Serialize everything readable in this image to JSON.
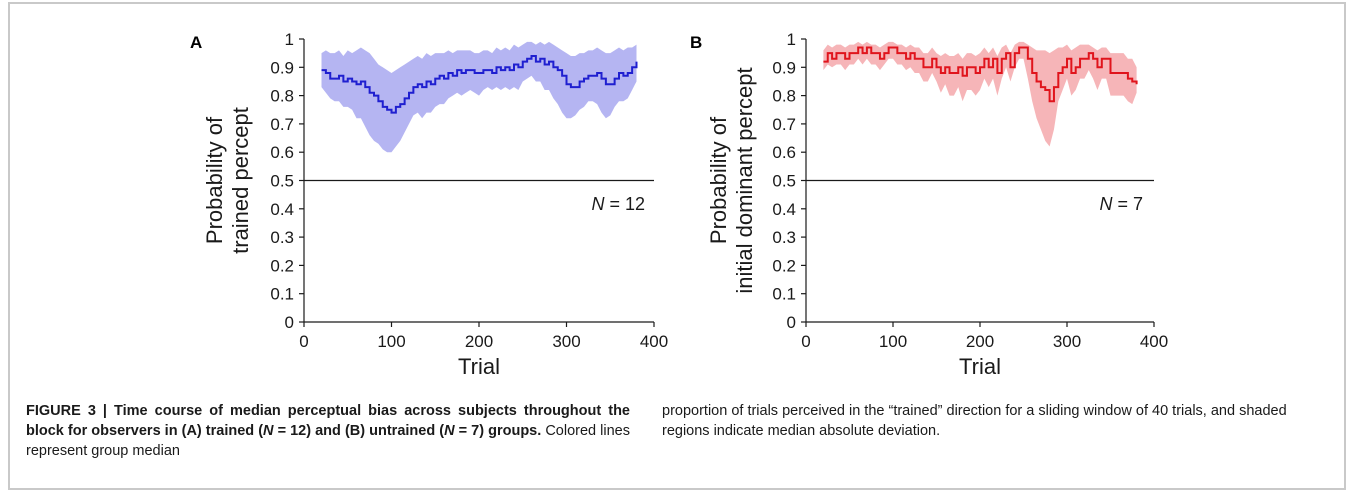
{
  "chart_data": [
    {
      "type": "line",
      "panel_label": "A",
      "ylabel_lines": [
        "Probability of",
        "trained percept"
      ],
      "xlabel": "Trial",
      "xlim": [
        0,
        400
      ],
      "ylim": [
        0,
        1
      ],
      "xticks": [
        "0",
        "100",
        "200",
        "300",
        "400"
      ],
      "yticks": [
        "0",
        "0.1",
        "0.2",
        "0.3",
        "0.4",
        "0.5",
        "0.6",
        "0.7",
        "0.8",
        "0.9",
        "1"
      ],
      "reference_line_y": 0.5,
      "annotation_prefix": "N",
      "annotation_suffix": " = 12",
      "line_color": "#1f1fd0",
      "band_color": "#a8a8f0",
      "series": [
        {
          "x": [
            20,
            25,
            30,
            35,
            40,
            45,
            50,
            55,
            60,
            65,
            70,
            75,
            80,
            85,
            90,
            95,
            100,
            105,
            110,
            115,
            120,
            125,
            130,
            135,
            140,
            145,
            150,
            155,
            160,
            165,
            170,
            175,
            180,
            185,
            190,
            195,
            200,
            205,
            210,
            215,
            220,
            225,
            230,
            235,
            240,
            245,
            250,
            255,
            260,
            265,
            270,
            275,
            280,
            285,
            290,
            295,
            300,
            305,
            310,
            315,
            320,
            325,
            330,
            335,
            340,
            345,
            350,
            355,
            360,
            365,
            370,
            375,
            380
          ],
          "median": [
            0.89,
            0.88,
            0.86,
            0.86,
            0.87,
            0.85,
            0.86,
            0.85,
            0.84,
            0.85,
            0.83,
            0.81,
            0.8,
            0.78,
            0.76,
            0.75,
            0.74,
            0.76,
            0.77,
            0.79,
            0.81,
            0.83,
            0.84,
            0.83,
            0.85,
            0.84,
            0.86,
            0.87,
            0.86,
            0.88,
            0.87,
            0.89,
            0.88,
            0.89,
            0.89,
            0.88,
            0.88,
            0.89,
            0.89,
            0.88,
            0.9,
            0.89,
            0.9,
            0.89,
            0.91,
            0.9,
            0.92,
            0.93,
            0.94,
            0.92,
            0.93,
            0.91,
            0.92,
            0.9,
            0.89,
            0.87,
            0.84,
            0.83,
            0.83,
            0.85,
            0.86,
            0.87,
            0.87,
            0.88,
            0.86,
            0.84,
            0.84,
            0.86,
            0.88,
            0.87,
            0.88,
            0.9,
            0.92
          ],
          "lower": [
            0.83,
            0.81,
            0.79,
            0.78,
            0.78,
            0.76,
            0.76,
            0.75,
            0.72,
            0.72,
            0.69,
            0.66,
            0.64,
            0.63,
            0.61,
            0.6,
            0.6,
            0.62,
            0.64,
            0.67,
            0.7,
            0.73,
            0.74,
            0.72,
            0.74,
            0.74,
            0.76,
            0.77,
            0.77,
            0.79,
            0.8,
            0.81,
            0.8,
            0.81,
            0.82,
            0.81,
            0.8,
            0.82,
            0.83,
            0.82,
            0.83,
            0.82,
            0.83,
            0.82,
            0.83,
            0.82,
            0.85,
            0.86,
            0.87,
            0.85,
            0.85,
            0.82,
            0.82,
            0.79,
            0.77,
            0.74,
            0.72,
            0.72,
            0.73,
            0.75,
            0.76,
            0.78,
            0.78,
            0.77,
            0.74,
            0.72,
            0.73,
            0.76,
            0.78,
            0.78,
            0.79,
            0.82,
            0.85
          ],
          "upper": [
            0.95,
            0.96,
            0.95,
            0.95,
            0.96,
            0.94,
            0.96,
            0.95,
            0.96,
            0.97,
            0.96,
            0.95,
            0.93,
            0.91,
            0.9,
            0.89,
            0.88,
            0.89,
            0.9,
            0.91,
            0.92,
            0.93,
            0.94,
            0.93,
            0.95,
            0.94,
            0.95,
            0.95,
            0.95,
            0.96,
            0.95,
            0.96,
            0.96,
            0.96,
            0.96,
            0.95,
            0.95,
            0.96,
            0.96,
            0.95,
            0.97,
            0.96,
            0.97,
            0.96,
            0.98,
            0.97,
            0.98,
            0.99,
            0.99,
            0.98,
            0.99,
            0.98,
            0.99,
            0.98,
            0.97,
            0.96,
            0.95,
            0.94,
            0.94,
            0.95,
            0.95,
            0.96,
            0.96,
            0.97,
            0.96,
            0.95,
            0.95,
            0.96,
            0.97,
            0.96,
            0.97,
            0.97,
            0.98
          ]
        }
      ]
    },
    {
      "type": "line",
      "panel_label": "B",
      "ylabel_lines": [
        "Probability of",
        "initial dominant percept"
      ],
      "xlabel": "Trial",
      "xlim": [
        0,
        400
      ],
      "ylim": [
        0,
        1
      ],
      "xticks": [
        "0",
        "100",
        "200",
        "300",
        "400"
      ],
      "yticks": [
        "0",
        "0.1",
        "0.2",
        "0.3",
        "0.4",
        "0.5",
        "0.6",
        "0.7",
        "0.8",
        "0.9",
        "1"
      ],
      "reference_line_y": 0.5,
      "annotation_prefix": "N",
      "annotation_suffix": " = 7",
      "line_color": "#e0141c",
      "band_color": "#f4a8ac",
      "series": [
        {
          "x": [
            20,
            25,
            30,
            35,
            40,
            45,
            50,
            55,
            60,
            65,
            70,
            75,
            80,
            85,
            90,
            95,
            100,
            105,
            110,
            115,
            120,
            125,
            130,
            135,
            140,
            145,
            150,
            155,
            160,
            165,
            170,
            175,
            180,
            185,
            190,
            195,
            200,
            205,
            210,
            215,
            220,
            225,
            230,
            235,
            240,
            245,
            250,
            255,
            260,
            265,
            270,
            275,
            280,
            285,
            290,
            295,
            300,
            305,
            310,
            315,
            320,
            325,
            330,
            335,
            340,
            345,
            350,
            355,
            360,
            365,
            370,
            375,
            380
          ],
          "median": [
            0.92,
            0.95,
            0.93,
            0.95,
            0.95,
            0.93,
            0.95,
            0.95,
            0.97,
            0.95,
            0.97,
            0.95,
            0.95,
            0.93,
            0.95,
            0.97,
            0.97,
            0.95,
            0.95,
            0.93,
            0.95,
            0.93,
            0.93,
            0.9,
            0.9,
            0.93,
            0.9,
            0.88,
            0.9,
            0.88,
            0.88,
            0.9,
            0.87,
            0.9,
            0.9,
            0.88,
            0.9,
            0.93,
            0.9,
            0.93,
            0.88,
            0.93,
            0.95,
            0.9,
            0.95,
            0.97,
            0.97,
            0.93,
            0.88,
            0.85,
            0.83,
            0.82,
            0.78,
            0.83,
            0.88,
            0.9,
            0.93,
            0.88,
            0.9,
            0.93,
            0.93,
            0.95,
            0.93,
            0.9,
            0.93,
            0.93,
            0.88,
            0.88,
            0.88,
            0.88,
            0.86,
            0.85,
            0.84
          ],
          "lower": [
            0.89,
            0.91,
            0.9,
            0.91,
            0.91,
            0.89,
            0.91,
            0.91,
            0.93,
            0.91,
            0.93,
            0.91,
            0.91,
            0.89,
            0.91,
            0.93,
            0.93,
            0.91,
            0.91,
            0.89,
            0.9,
            0.88,
            0.88,
            0.85,
            0.85,
            0.88,
            0.85,
            0.81,
            0.84,
            0.8,
            0.8,
            0.83,
            0.78,
            0.82,
            0.82,
            0.8,
            0.82,
            0.86,
            0.83,
            0.86,
            0.8,
            0.86,
            0.9,
            0.85,
            0.9,
            0.93,
            0.93,
            0.86,
            0.78,
            0.72,
            0.68,
            0.64,
            0.62,
            0.68,
            0.78,
            0.82,
            0.86,
            0.8,
            0.82,
            0.86,
            0.86,
            0.89,
            0.86,
            0.82,
            0.86,
            0.86,
            0.8,
            0.8,
            0.8,
            0.8,
            0.78,
            0.77,
            0.81
          ],
          "upper": [
            0.96,
            0.98,
            0.97,
            0.98,
            0.98,
            0.97,
            0.98,
            0.98,
            0.99,
            0.98,
            0.99,
            0.98,
            0.98,
            0.97,
            0.98,
            0.99,
            0.99,
            0.98,
            0.98,
            0.97,
            0.98,
            0.97,
            0.97,
            0.95,
            0.95,
            0.97,
            0.95,
            0.94,
            0.95,
            0.94,
            0.94,
            0.95,
            0.93,
            0.95,
            0.95,
            0.94,
            0.95,
            0.97,
            0.95,
            0.97,
            0.94,
            0.97,
            0.98,
            0.95,
            0.98,
            0.99,
            0.99,
            0.98,
            0.97,
            0.96,
            0.96,
            0.96,
            0.95,
            0.96,
            0.97,
            0.97,
            0.98,
            0.96,
            0.97,
            0.98,
            0.98,
            0.98,
            0.97,
            0.96,
            0.97,
            0.97,
            0.95,
            0.95,
            0.95,
            0.95,
            0.93,
            0.93,
            0.9
          ]
        }
      ]
    }
  ],
  "caption": {
    "lead_bold_1": "FIGURE 3 | Time course of median perceptual bias across subjects throughout the block for observers in (A) trained (",
    "lead_bold_n1": "N",
    "lead_bold_2": " = 12) and (B) untrained (",
    "lead_bold_n2": "N",
    "lead_bold_3": " = 7) groups.",
    "body_left": " Colored lines represent group median",
    "body_right": "proportion of trials perceived in the “trained” direction for a sliding window of 40 trials, and shaded regions indicate median absolute deviation."
  }
}
